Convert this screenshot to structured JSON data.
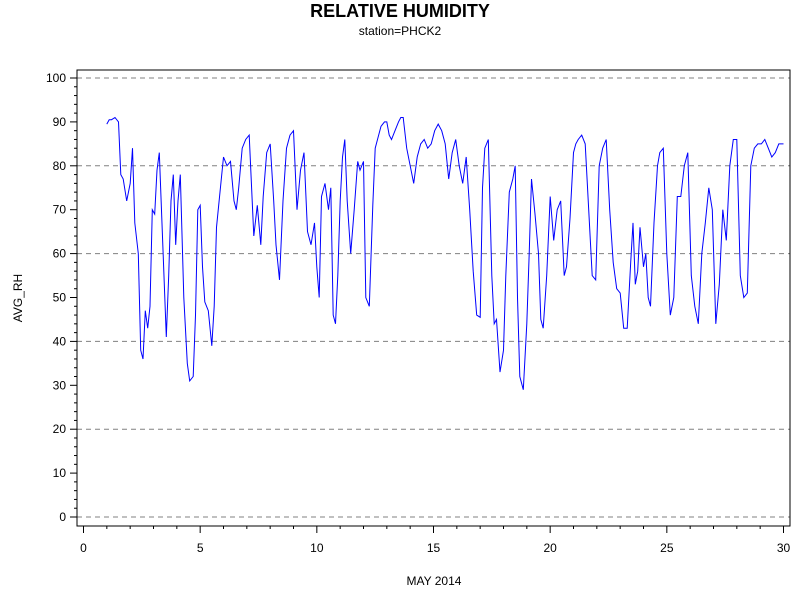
{
  "chart_data": {
    "type": "line",
    "title": "RELATIVE HUMIDITY",
    "subtitle": "station=PHCK2",
    "xlabel": "MAY 2014",
    "ylabel": "AVG_RH",
    "xlim": [
      0,
      30
    ],
    "ylim": [
      0,
      100
    ],
    "x_ticks": [
      0,
      5,
      10,
      15,
      20,
      25,
      30
    ],
    "y_ticks": [
      0,
      10,
      20,
      30,
      40,
      50,
      60,
      70,
      80,
      90,
      100
    ],
    "grid": "horizontal dashed at every 20",
    "line_color": "#0000ff",
    "series": [
      {
        "x": [
          1.0,
          1.1,
          1.2,
          1.35,
          1.5,
          1.6,
          1.7,
          1.85,
          2.0,
          2.1,
          2.2,
          2.35,
          2.45,
          2.55,
          2.65,
          2.75,
          2.85,
          2.95,
          3.05,
          3.15,
          3.25,
          3.4,
          3.55,
          3.65,
          3.75,
          3.85,
          3.95,
          4.05,
          4.15,
          4.3,
          4.45,
          4.55,
          4.7,
          4.8,
          4.9,
          5.0,
          5.1,
          5.2,
          5.35,
          5.5,
          5.6,
          5.7,
          5.85,
          6.0,
          6.15,
          6.3,
          6.45,
          6.55,
          6.65,
          6.8,
          6.95,
          7.1,
          7.3,
          7.45,
          7.6,
          7.7,
          7.85,
          8.0,
          8.15,
          8.25,
          8.4,
          8.55,
          8.7,
          8.85,
          9.0,
          9.15,
          9.3,
          9.45,
          9.6,
          9.75,
          9.9,
          10.0,
          10.1,
          10.2,
          10.35,
          10.5,
          10.6,
          10.7,
          10.8,
          10.9,
          11.0,
          11.1,
          11.2,
          11.3,
          11.45,
          11.6,
          11.75,
          11.85,
          12.0,
          12.1,
          12.25,
          12.4,
          12.5,
          12.6,
          12.75,
          12.9,
          13.0,
          13.1,
          13.2,
          13.35,
          13.5,
          13.6,
          13.7,
          13.85,
          14.0,
          14.15,
          14.3,
          14.45,
          14.6,
          14.75,
          14.9,
          15.05,
          15.2,
          15.35,
          15.5,
          15.65,
          15.8,
          15.95,
          16.1,
          16.25,
          16.4,
          16.55,
          16.7,
          16.85,
          17.0,
          17.1,
          17.2,
          17.35,
          17.5,
          17.6,
          17.7,
          17.85,
          18.0,
          18.1,
          18.25,
          18.4,
          18.5,
          18.6,
          18.7,
          18.85,
          19.0,
          19.1,
          19.2,
          19.35,
          19.5,
          19.6,
          19.7,
          19.85,
          20.0,
          20.15,
          20.3,
          20.45,
          20.6,
          20.7,
          20.85,
          21.0,
          21.1,
          21.2,
          21.35,
          21.5,
          21.65,
          21.8,
          21.95,
          22.1,
          22.25,
          22.4,
          22.55,
          22.7,
          22.85,
          23.0,
          23.15,
          23.3,
          23.45,
          23.55,
          23.65,
          23.75,
          23.85,
          24.0,
          24.1,
          24.2,
          24.3,
          24.45,
          24.6,
          24.7,
          24.85,
          25.0,
          25.15,
          25.3,
          25.45,
          25.6,
          25.75,
          25.9,
          26.05,
          26.2,
          26.35,
          26.5,
          26.65,
          26.8,
          26.95,
          27.1,
          27.25,
          27.4,
          27.55,
          27.7,
          27.85,
          28.0,
          28.15,
          28.3,
          28.45,
          28.6,
          28.75,
          28.9,
          29.05,
          29.2,
          29.35,
          29.5,
          29.65,
          29.8,
          30.0
        ],
        "y": [
          89.5,
          90.5,
          90.5,
          91,
          90,
          78,
          77,
          72,
          76,
          84,
          67,
          60,
          38,
          36,
          47,
          43,
          48,
          70,
          69,
          79,
          83,
          62,
          41,
          55,
          72,
          78,
          62,
          72,
          78,
          50,
          35,
          31,
          32,
          46,
          70,
          71,
          57,
          49,
          47,
          39,
          48,
          66,
          74,
          82,
          80,
          81,
          72,
          70,
          75,
          84,
          86,
          87,
          64,
          71,
          62,
          73,
          83,
          85,
          72,
          62,
          54,
          72,
          84,
          87,
          88,
          70,
          79,
          83,
          65,
          62,
          67,
          57,
          50,
          73,
          76,
          70,
          75,
          46,
          44,
          55,
          72,
          82,
          86,
          72,
          60,
          70,
          81,
          79,
          81,
          50,
          48,
          71,
          84,
          86,
          89,
          90,
          90,
          87,
          86,
          88,
          90,
          91,
          91,
          84,
          80,
          76,
          82,
          85,
          86,
          84,
          85,
          88,
          89.5,
          88,
          85,
          77,
          83,
          86,
          80,
          76,
          82,
          70,
          56,
          46,
          45.5,
          75,
          84,
          86,
          55,
          44,
          45,
          33,
          38,
          55,
          74,
          77,
          80,
          50,
          32,
          29,
          44,
          60,
          77,
          69,
          60,
          45,
          43,
          55,
          73,
          63,
          70,
          72,
          55,
          57,
          68,
          83,
          85,
          86,
          87,
          85,
          70,
          55,
          54,
          80,
          84,
          86,
          70,
          58,
          52,
          51,
          43,
          43,
          58,
          67,
          53,
          56,
          66,
          57,
          60,
          50,
          48,
          67,
          80,
          83,
          84,
          60,
          46,
          50,
          73,
          73,
          80,
          83,
          55,
          48,
          44,
          60,
          67,
          75,
          70,
          44,
          53,
          70,
          63,
          80,
          86,
          86,
          55,
          50,
          51,
          80,
          84,
          85,
          85,
          86,
          84,
          82,
          83,
          85,
          85
        ]
      }
    ]
  }
}
